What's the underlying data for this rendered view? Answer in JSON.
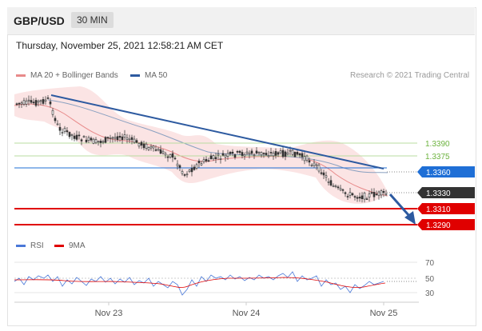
{
  "header": {
    "symbol": "GBP/USD",
    "timeframe": "30 MIN"
  },
  "timestamp": "Thursday, November 25, 2021 12:58:21 AM CET",
  "legend": {
    "ma_bb": "MA 20 + Bollinger Bands",
    "ma50": "MA 50",
    "copyright": "Research © 2021 Trading Central"
  },
  "rsi_legend": {
    "rsi": "RSI",
    "ma9": "9MA"
  },
  "levels": [
    {
      "label": "1.3390",
      "style": "green"
    },
    {
      "label": "1.3375",
      "style": "green"
    },
    {
      "label": "1.3360",
      "style": "blue"
    },
    {
      "label": "1.3330",
      "style": "current"
    },
    {
      "label": "1.3310",
      "style": "red"
    },
    {
      "label": "1.3290",
      "style": "red"
    }
  ],
  "rsi_ticks": [
    "70",
    "50",
    "30"
  ],
  "x_ticks": [
    "Nov 23",
    "Nov 24",
    "Nov 25"
  ],
  "colors": {
    "green": "#6db33f",
    "blue": "#1f6fd6",
    "red": "#e00000",
    "current": "#333333",
    "trend": "#2d5aa0",
    "band": "#fbe3e3",
    "ma20": "#e88a8a"
  }
}
